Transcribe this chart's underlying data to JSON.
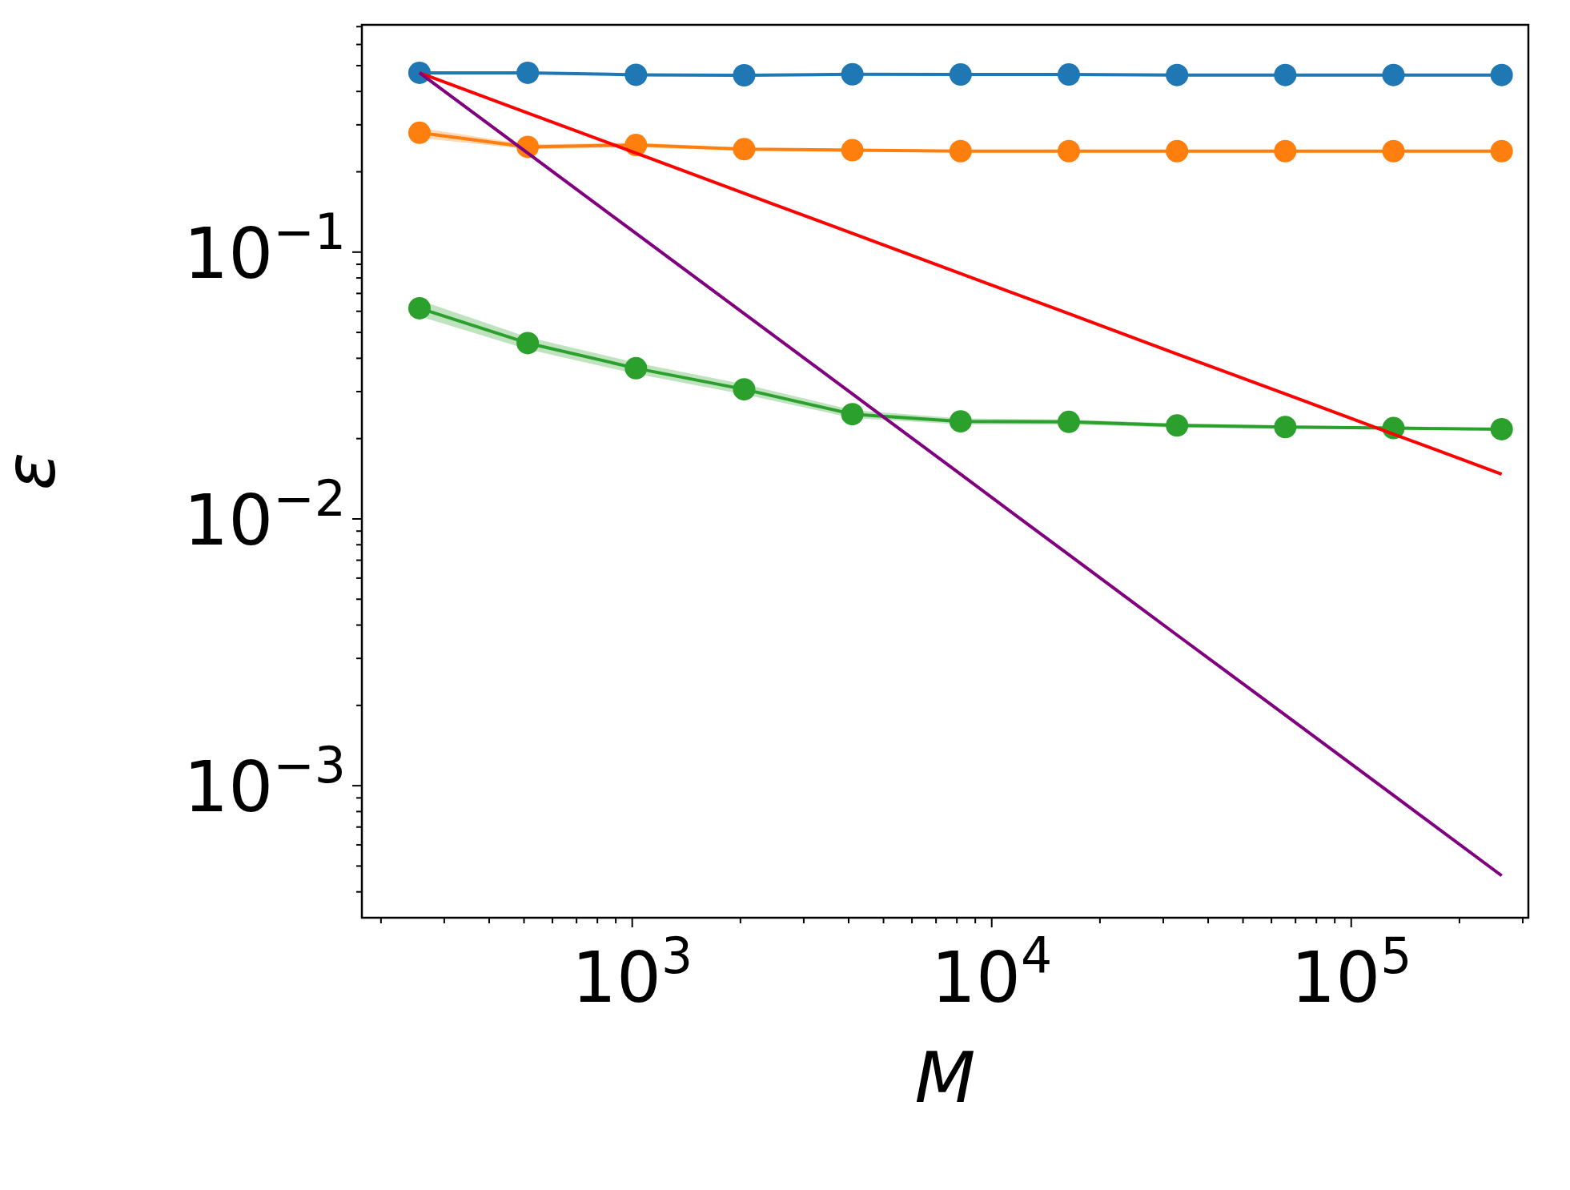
{
  "chart_data": {
    "type": "line",
    "xlabel": "M",
    "ylabel": "ε",
    "log": "xy",
    "grid": false,
    "xlim": [
      177,
      311000
    ],
    "ylim": [
      0.00032,
      0.711
    ],
    "xticks": [
      {
        "value": 200,
        "label": null
      },
      {
        "value": 300,
        "label": null
      },
      {
        "value": 400,
        "label": null
      },
      {
        "value": 500,
        "label": null
      },
      {
        "value": 600,
        "label": null
      },
      {
        "value": 700,
        "label": null
      },
      {
        "value": 800,
        "label": null
      },
      {
        "value": 900,
        "label": null
      },
      {
        "value": 1000,
        "label": "10$^{3}$"
      },
      {
        "value": 2000,
        "label": null
      },
      {
        "value": 3000,
        "label": null
      },
      {
        "value": 4000,
        "label": null
      },
      {
        "value": 5000,
        "label": null
      },
      {
        "value": 6000,
        "label": null
      },
      {
        "value": 7000,
        "label": null
      },
      {
        "value": 8000,
        "label": null
      },
      {
        "value": 9000,
        "label": null
      },
      {
        "value": 10000,
        "label": "10$^{4}$"
      },
      {
        "value": 20000,
        "label": null
      },
      {
        "value": 30000,
        "label": null
      },
      {
        "value": 40000,
        "label": null
      },
      {
        "value": 50000,
        "label": null
      },
      {
        "value": 60000,
        "label": null
      },
      {
        "value": 70000,
        "label": null
      },
      {
        "value": 80000,
        "label": null
      },
      {
        "value": 90000,
        "label": null
      },
      {
        "value": 100000,
        "label": "10$^{5}$"
      },
      {
        "value": 200000,
        "label": null
      },
      {
        "value": 300000,
        "label": null
      }
    ],
    "yticks": [
      {
        "value": 0.004,
        "label": null
      },
      {
        "value": 0.005,
        "label": null
      },
      {
        "value": 0.006,
        "label": null
      },
      {
        "value": 0.007,
        "label": null
      },
      {
        "value": 0.008,
        "label": null
      },
      {
        "value": 0.009,
        "label": null
      },
      {
        "value": 0.001,
        "label": "10$^{−3}$"
      },
      {
        "value": 0.002,
        "label": null
      },
      {
        "value": 0.003,
        "label": null
      },
      {
        "value": 0.0004,
        "label": null
      },
      {
        "value": 0.0005,
        "label": null
      },
      {
        "value": 0.0006,
        "label": null
      },
      {
        "value": 0.0007,
        "label": null
      },
      {
        "value": 0.0008,
        "label": null
      },
      {
        "value": 0.0009,
        "label": null
      },
      {
        "value": 0.01,
        "label": "10$^{−2}$"
      },
      {
        "value": 0.02,
        "label": null
      },
      {
        "value": 0.03,
        "label": null
      },
      {
        "value": 0.04,
        "label": null
      },
      {
        "value": 0.05,
        "label": null
      },
      {
        "value": 0.06,
        "label": null
      },
      {
        "value": 0.07,
        "label": null
      },
      {
        "value": 0.08,
        "label": null
      },
      {
        "value": 0.09,
        "label": null
      },
      {
        "value": 0.1,
        "label": "10$^{−1}$"
      },
      {
        "value": 0.2,
        "label": null
      },
      {
        "value": 0.3,
        "label": null
      },
      {
        "value": 0.4,
        "label": null
      },
      {
        "value": 0.5,
        "label": null
      },
      {
        "value": 0.6,
        "label": null
      },
      {
        "value": 0.7,
        "label": null
      }
    ],
    "x": [
      256,
      512,
      1024,
      2048,
      4096,
      8192,
      16384,
      32768,
      65536,
      131072,
      262144
    ],
    "series": [
      {
        "color": "#1f77b4",
        "marker": "circle",
        "values": [
          0.47,
          0.47,
          0.462,
          0.46,
          0.464,
          0.463,
          0.463,
          0.461,
          0.461,
          0.461,
          0.461
        ]
      },
      {
        "color": "#ff7f0e",
        "marker": "circle",
        "values": [
          0.28,
          0.248,
          0.252,
          0.243,
          0.241,
          0.239,
          0.239,
          0.239,
          0.239,
          0.239,
          0.239
        ],
        "lower": [
          0.268,
          0.243,
          0.247,
          0.24,
          0.238,
          0.237,
          0.237,
          0.237,
          0.237,
          0.237,
          0.237
        ],
        "upper": [
          0.292,
          0.253,
          0.257,
          0.246,
          0.244,
          0.241,
          0.241,
          0.241,
          0.241,
          0.241,
          0.241
        ]
      },
      {
        "color": "#2ca02c",
        "marker": "circle",
        "values": [
          0.0616,
          0.0456,
          0.0367,
          0.0306,
          0.0247,
          0.0232,
          0.0231,
          0.0224,
          0.0221,
          0.0219,
          0.0217
        ],
        "lower": [
          0.0575,
          0.0432,
          0.035,
          0.0293,
          0.0239,
          0.0226,
          0.0226,
          0.022,
          0.0218,
          0.0216,
          0.0215
        ],
        "upper": [
          0.066,
          0.048,
          0.0385,
          0.032,
          0.0256,
          0.0238,
          0.0236,
          0.0228,
          0.0224,
          0.0222,
          0.0219
        ]
      },
      {
        "color": "#ff0000",
        "marker": "none",
        "values": [
          0.47,
          0.332,
          0.235,
          0.166,
          0.1175,
          0.0831,
          0.0588,
          0.0415,
          0.0294,
          0.0208,
          0.0147
        ]
      },
      {
        "color": "#800080",
        "marker": "none",
        "values": [
          0.47,
          0.235,
          0.1175,
          0.0588,
          0.0294,
          0.0147,
          0.00734,
          0.00367,
          0.00184,
          0.00092,
          0.00046
        ]
      }
    ]
  }
}
